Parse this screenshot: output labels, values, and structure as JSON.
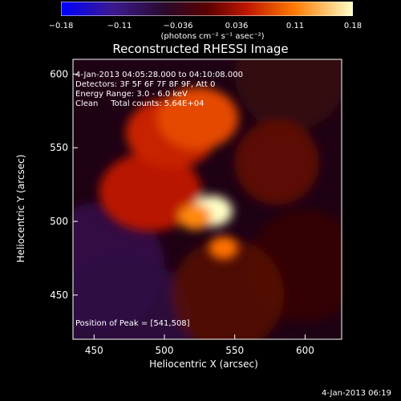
{
  "chart_data": {
    "type": "heatmap",
    "title": "Reconstructed RHESSI Image",
    "xlabel": "Heliocentric X (arcsec)",
    "ylabel": "Heliocentric Y (arcsec)",
    "xlim": [
      435,
      626
    ],
    "ylim": [
      420,
      610
    ],
    "xticks": [
      "450",
      "500",
      "550",
      "600"
    ],
    "yticks": [
      "450",
      "500",
      "550",
      "600"
    ],
    "colorbar": {
      "range": [
        -0.18,
        0.18
      ],
      "ticks": [
        "−0.18",
        "−0.11",
        "−0.036",
        "0.036",
        "0.11",
        "0.18"
      ],
      "units": "(photons cm⁻² s⁻¹ asec⁻²)"
    },
    "annotations": {
      "time_range": "4-Jan-2013 04:05:28.000 to 04:10:08.000",
      "detectors": "Detectors: 3F 5F 6F 7F 8F 9F, Att 0",
      "energy": "Energy Range: 3.0 - 6.0 keV",
      "clean": "Clean     Total counts: 5.64E+04",
      "peak": "Position of Peak = [541,508]"
    },
    "sources": [
      {
        "x": 534,
        "y": 507,
        "intensity": 0.18,
        "sigma": 11
      },
      {
        "x": 522,
        "y": 503,
        "intensity": 0.12,
        "sigma": 9
      },
      {
        "x": 542,
        "y": 482,
        "intensity": 0.11,
        "sigma": 8
      },
      {
        "x": 524,
        "y": 570,
        "intensity": 0.09,
        "sigma": 22
      },
      {
        "x": 505,
        "y": 560,
        "intensity": 0.07,
        "sigma": 25
      },
      {
        "x": 490,
        "y": 520,
        "intensity": 0.06,
        "sigma": 28
      }
    ],
    "peak_position": [
      541,
      508
    ]
  },
  "footer": {
    "timestamp": "4-Jan-2013 06:19"
  }
}
